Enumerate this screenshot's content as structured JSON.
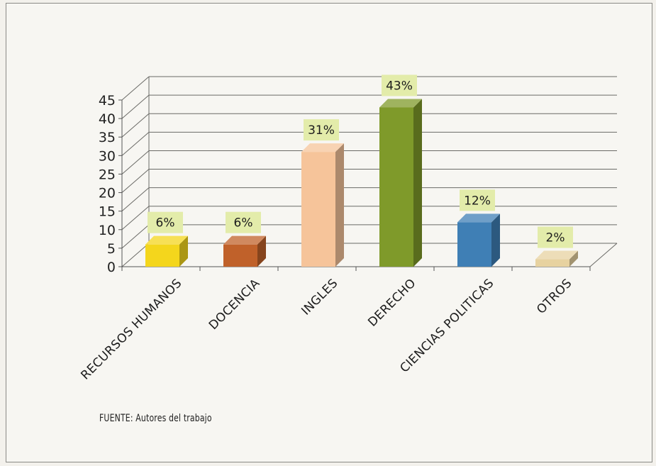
{
  "chart_data": {
    "type": "bar",
    "categories": [
      "RECURSOS HUMANOS",
      "DOCENCIA",
      "INGLES",
      "DERECHO",
      "CIENCIAS POLITICAS",
      "OTROS"
    ],
    "values": [
      6,
      6,
      31,
      43,
      12,
      2
    ],
    "data_labels": [
      "6%",
      "6%",
      "31%",
      "43%",
      "12%",
      "2%"
    ],
    "colors": [
      "#f4d61c",
      "#c0612a",
      "#f6c49a",
      "#7f9a2a",
      "#3f7fb5",
      "#e7d2a0"
    ],
    "yticks": [
      "0",
      "5",
      "10",
      "15",
      "20",
      "25",
      "30",
      "35",
      "40",
      "45"
    ],
    "ylim": [
      0,
      45
    ],
    "grid": true,
    "style": "3d-column",
    "label_box_color": "#e3ecaa"
  },
  "source_note": "FUENTE: Autores del trabajo"
}
